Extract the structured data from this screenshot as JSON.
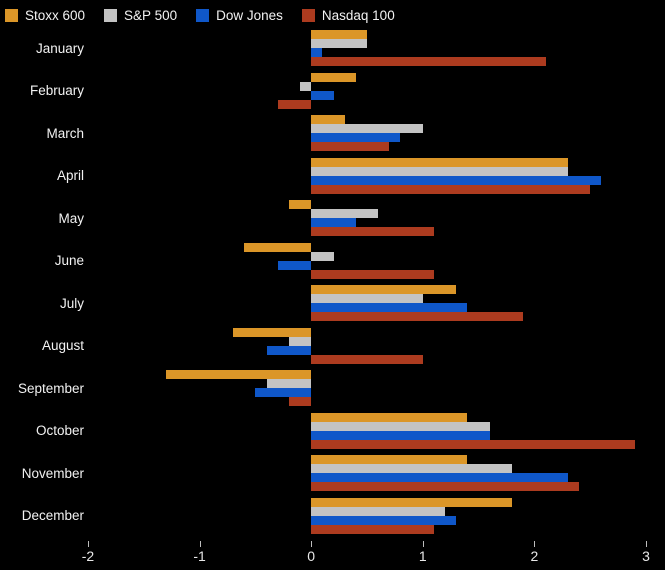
{
  "chart_data": {
    "type": "bar",
    "orientation": "horizontal",
    "title": "",
    "xlabel": "",
    "ylabel": "",
    "categories": [
      "January",
      "February",
      "March",
      "April",
      "May",
      "June",
      "July",
      "August",
      "September",
      "October",
      "November",
      "December"
    ],
    "series": [
      {
        "name": "Stoxx 600",
        "color": "#DB9628",
        "values": [
          0.5,
          0.4,
          0.3,
          2.3,
          -0.2,
          -0.6,
          1.3,
          -0.7,
          -1.3,
          1.4,
          1.4,
          1.8
        ]
      },
      {
        "name": "S&P 500",
        "color": "#C3C3C3",
        "values": [
          0.5,
          -0.1,
          1.0,
          2.3,
          0.6,
          0.2,
          1.0,
          -0.2,
          -0.4,
          1.6,
          1.8,
          1.2
        ]
      },
      {
        "name": "Dow Jones",
        "color": "#0F57C9",
        "values": [
          0.1,
          0.2,
          0.8,
          2.6,
          0.4,
          -0.3,
          1.4,
          -0.4,
          -0.5,
          1.6,
          2.3,
          1.3
        ]
      },
      {
        "name": "Nasdaq 100",
        "color": "#AC3B1F",
        "values": [
          2.1,
          -0.3,
          0.7,
          2.5,
          1.1,
          1.1,
          1.9,
          1.0,
          -0.2,
          2.9,
          2.4,
          1.1
        ]
      }
    ],
    "xlim": [
      -2,
      3.17
    ],
    "xticks": [
      "-2",
      "-1",
      "0",
      "1",
      "2",
      "3"
    ],
    "grid": false,
    "legend_position": "top-left",
    "background_color": "#000000",
    "text_color": "#F2F2F2"
  }
}
